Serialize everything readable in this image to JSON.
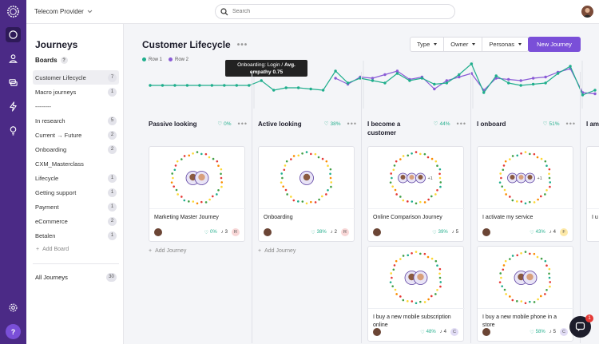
{
  "topbar": {
    "provider": "Telecom Provider",
    "search_placeholder": "Search"
  },
  "sidebar": {
    "title": "Journeys",
    "boards_label": "Boards",
    "boards_help": "?",
    "items": [
      {
        "label": "Customer Lifecycle",
        "count": "7",
        "selected": true
      },
      {
        "label": "Macro journeys",
        "count": "1"
      },
      {
        "label": "--------",
        "count": ""
      },
      {
        "label": "In research",
        "count": "5"
      },
      {
        "label": "Current → Future",
        "count": "2"
      },
      {
        "label": "Onboarding",
        "count": "2"
      },
      {
        "label": "CXM_Masterclass",
        "count": ""
      },
      {
        "label": "Lifecycle",
        "count": "1"
      },
      {
        "label": "Getting support",
        "count": "1"
      },
      {
        "label": "Payment",
        "count": "1"
      },
      {
        "label": "eCommerce",
        "count": "2"
      },
      {
        "label": "Betalen",
        "count": "1"
      }
    ],
    "add_board": "Add Board",
    "all_journeys": {
      "label": "All Journeys",
      "count": "30"
    }
  },
  "main": {
    "title": "Customer Lifecycle",
    "more": "•••",
    "filters": [
      {
        "label": "Type"
      },
      {
        "label": "Owner"
      },
      {
        "label": "Personas"
      }
    ],
    "new_journey": "New Journey",
    "legend": [
      {
        "label": "Row 1",
        "color": "#1fae8c"
      },
      {
        "label": "Row 2",
        "color": "#8a5bd6"
      }
    ],
    "tooltip": {
      "line1": "Onboarding: Login / ",
      "line1_bold": "Avg.",
      "line2": "empathy 0.75"
    },
    "add_journey": "Add Journey",
    "columns": [
      {
        "title": "Passive looking",
        "pct": "0%",
        "cards": [
          {
            "name": "Marketing Master Journey",
            "pct": "0%",
            "steps": "3",
            "badge": "R",
            "badge_color": "#f8d7d7",
            "avatars": 2
          }
        ]
      },
      {
        "title": "Active looking",
        "pct": "38%",
        "cards": [
          {
            "name": "Onboarding",
            "pct": "38%",
            "steps": "2",
            "badge": "R",
            "badge_color": "#f8d7d7",
            "avatars": 1
          }
        ]
      },
      {
        "title": "I become a customer",
        "pct": "44%",
        "cards": [
          {
            "name": "Online Comparison Journey",
            "pct": "39%",
            "steps": "5",
            "badge": "",
            "avatars": 3,
            "extra": "+1"
          },
          {
            "name": "I buy a new mobile subscription online",
            "pct": "48%",
            "steps": "4",
            "badge": "C",
            "badge_color": "#e1dcf5",
            "avatars": 2
          }
        ]
      },
      {
        "title": "I onboard",
        "pct": "51%",
        "cards": [
          {
            "name": "I activate my service",
            "pct": "43%",
            "steps": "4",
            "badge": "F",
            "badge_color": "#fde9a8",
            "avatars": 3,
            "extra": "+1"
          },
          {
            "name": "I buy a new mobile phone in a store",
            "pct": "58%",
            "steps": "5",
            "badge": "C",
            "badge_color": "#e1dcf5",
            "avatars": 2
          }
        ]
      },
      {
        "title": "I am",
        "pct": "",
        "cards": [
          {
            "name": "I u",
            "pct": "",
            "steps": "",
            "badge": "",
            "avatars": 0
          }
        ]
      }
    ]
  },
  "chart_data": {
    "type": "line",
    "series": [
      {
        "name": "Row 1",
        "color": "#1fae8c",
        "values": [
          0,
          0,
          0,
          0,
          0,
          0,
          0,
          0,
          0,
          0.2,
          -0.2,
          -0.1,
          -0.1,
          -0.15,
          -0.2,
          0.6,
          0.1,
          0.3,
          0.2,
          0.1,
          0.5,
          0.2,
          0.3,
          0.05,
          0.1,
          0.45,
          0.9,
          -0.3,
          0.4,
          0.1,
          0.0,
          0.05,
          0.1,
          0.5,
          0.8,
          -0.4,
          -0.2
        ]
      },
      {
        "name": "Row 2",
        "color": "#8a5bd6",
        "values": [
          null,
          null,
          null,
          null,
          null,
          null,
          null,
          null,
          null,
          null,
          null,
          null,
          null,
          null,
          null,
          0.3,
          0.05,
          0.35,
          0.3,
          0.45,
          0.6,
          0.25,
          0.35,
          -0.15,
          0.2,
          0.35,
          0.5,
          -0.2,
          0.3,
          0.25,
          0.2,
          0.3,
          0.35,
          0.55,
          0.7,
          -0.3,
          -0.35
        ]
      }
    ]
  },
  "rail": {
    "help": "?",
    "chat_count": "1"
  }
}
